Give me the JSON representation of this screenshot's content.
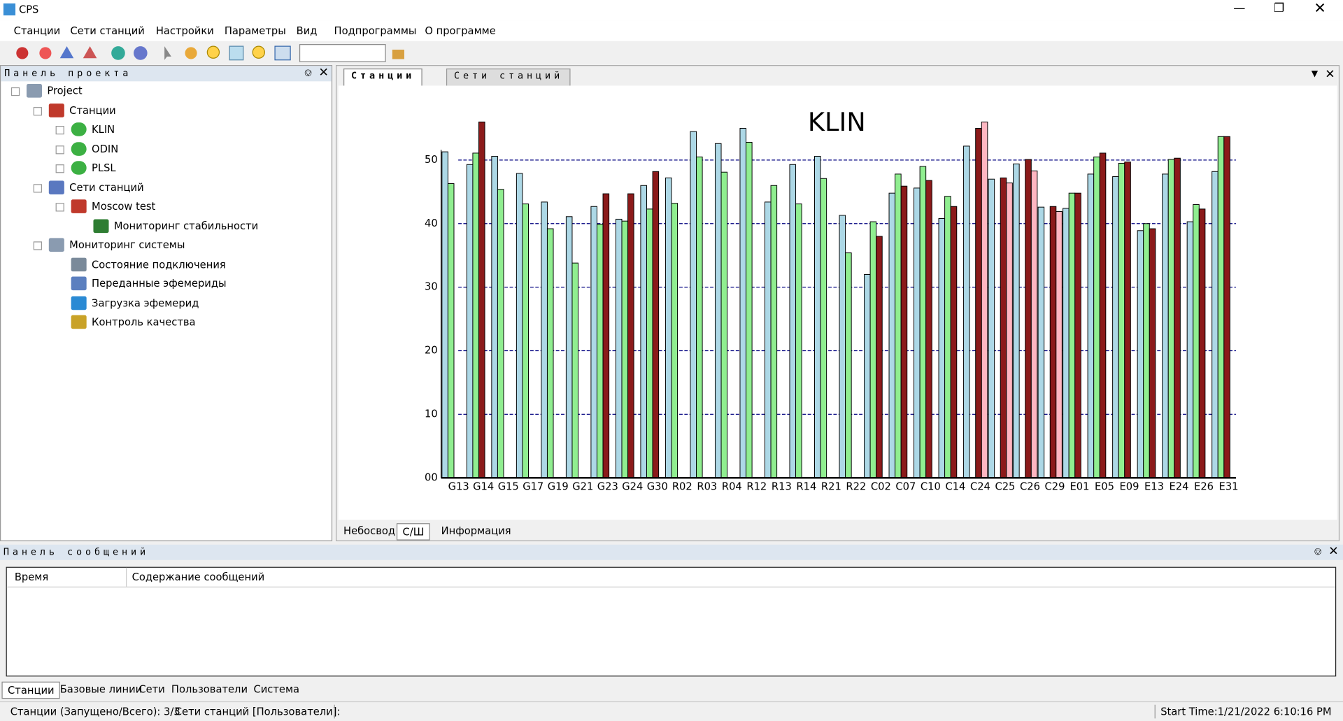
{
  "window_title": "CPS",
  "menu": [
    "Станции",
    "Сети станций",
    "Настройки",
    "Параметры",
    "Вид",
    "Подпрограммы",
    "О программе"
  ],
  "project_panel": {
    "title": "Панель проекта",
    "tree": [
      {
        "label": "Project",
        "level": 0
      },
      {
        "label": "Станции",
        "level": 1
      },
      {
        "label": "KLIN",
        "level": 2
      },
      {
        "label": "ODIN",
        "level": 2
      },
      {
        "label": "PLSL",
        "level": 2
      },
      {
        "label": "Сети станций",
        "level": 1
      },
      {
        "label": "Moscow test",
        "level": 2
      },
      {
        "label": "Мониторинг стабильности",
        "level": 3
      },
      {
        "label": "Мониторинг системы",
        "level": 1
      },
      {
        "label": "Состояние подключения",
        "level": 2
      },
      {
        "label": "Переданные эфемериды",
        "level": 2
      },
      {
        "label": "Загрузка эфемерид",
        "level": 2
      },
      {
        "label": "Контроль качества",
        "level": 2
      }
    ]
  },
  "doc_tabs": [
    "Станции",
    "Сети станций"
  ],
  "view_tabs": [
    "Небосвод",
    "С/Ш",
    "Информация"
  ],
  "chart_data": {
    "type": "bar",
    "title": "KLIN",
    "categories": [
      "G13",
      "G14",
      "G15",
      "G17",
      "G19",
      "G21",
      "G23",
      "G24",
      "G30",
      "R02",
      "R03",
      "R04",
      "R12",
      "R13",
      "R14",
      "R21",
      "R22",
      "C02",
      "C07",
      "C10",
      "C14",
      "C24",
      "C25",
      "C26",
      "C29",
      "E01",
      "E05",
      "E09",
      "E13",
      "E24",
      "E26",
      "E31"
    ],
    "series": [
      {
        "color": "#add8e6",
        "values": [
          51.3,
          49.3,
          50.6,
          47.9,
          43.4,
          41.1,
          42.7,
          40.7,
          46.0,
          47.2,
          54.5,
          52.6,
          55.0,
          43.4,
          49.3,
          50.6,
          41.3,
          32.0,
          44.8,
          45.6,
          40.8,
          52.2,
          47.0,
          49.4,
          42.6,
          42.4,
          47.8,
          47.4,
          38.9,
          47.8,
          40.3,
          48.2
        ]
      },
      {
        "color": "#90ee90",
        "values": [
          46.3,
          51.1,
          45.4,
          43.1,
          39.2,
          33.8,
          39.9,
          40.4,
          42.3,
          43.2,
          50.5,
          48.1,
          52.8,
          46.0,
          43.1,
          47.1,
          35.4,
          40.3,
          47.8,
          49.0,
          44.3,
          null,
          null,
          null,
          null,
          44.8,
          50.5,
          49.5,
          40.0,
          50.1,
          43.0,
          53.7
        ]
      },
      {
        "color": "#8b1a1a",
        "values": [
          null,
          56.0,
          null,
          null,
          null,
          null,
          44.7,
          44.7,
          48.2,
          null,
          null,
          null,
          null,
          null,
          null,
          null,
          null,
          38.0,
          45.9,
          46.8,
          42.7,
          55.0,
          47.2,
          50.1,
          42.7,
          44.8,
          51.1,
          49.7,
          39.2,
          50.3,
          42.3,
          53.7
        ]
      },
      {
        "color": "#ffb6c1",
        "values": [
          null,
          null,
          null,
          null,
          null,
          null,
          null,
          null,
          null,
          null,
          null,
          null,
          null,
          null,
          null,
          null,
          null,
          null,
          null,
          null,
          null,
          56.0,
          46.4,
          48.3,
          41.9,
          null,
          null,
          null,
          null,
          null,
          null,
          null
        ]
      }
    ],
    "ylim": [
      0,
      57
    ],
    "yticks": [
      {
        "value": 0,
        "label": "00"
      },
      10,
      20,
      30,
      40,
      50
    ],
    "grid": true
  },
  "message_panel": {
    "title": "Панель сообщений",
    "columns": [
      "Время",
      "Содержание сообщений"
    ]
  },
  "bottom_tabs": [
    "Станции",
    "Базовые линии",
    "Сети",
    "Пользователи",
    "Система"
  ],
  "status_bar": [
    "Станции (Запущено/Всего): 3/3",
    "Сети станций [Пользователи]:",
    "Start Time:1/21/2022 6:10:16 PM"
  ]
}
